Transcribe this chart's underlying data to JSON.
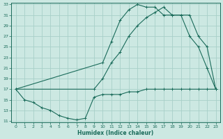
{
  "xlabel": "Humidex (Indice chaleur)",
  "bg_color": "#cce8e2",
  "grid_color": "#a8d0c8",
  "line_color": "#1a6b5a",
  "xlim": [
    0,
    23
  ],
  "ylim": [
    11,
    33
  ],
  "xticks": [
    0,
    1,
    2,
    3,
    4,
    5,
    6,
    7,
    8,
    9,
    10,
    11,
    12,
    13,
    14,
    15,
    16,
    17,
    18,
    19,
    20,
    21,
    22,
    23
  ],
  "yticks": [
    11,
    13,
    15,
    17,
    19,
    21,
    23,
    25,
    27,
    29,
    31,
    33
  ],
  "curve_bottom_x": [
    0,
    1,
    2,
    3,
    4,
    5,
    6,
    7,
    8,
    9,
    10,
    11,
    12,
    13,
    14,
    15,
    16,
    17,
    18,
    19,
    20,
    21,
    22,
    23
  ],
  "curve_bottom_y": [
    17,
    15,
    14.5,
    13.5,
    13,
    12,
    11.5,
    11.2,
    11.5,
    15.5,
    16,
    16,
    16,
    16.5,
    16.5,
    17,
    17,
    17,
    17,
    17,
    17,
    17,
    17,
    17
  ],
  "curve_mid_x": [
    0,
    9,
    10,
    11,
    12,
    13,
    14,
    15,
    16,
    17,
    18,
    19,
    20,
    21,
    22,
    23
  ],
  "curve_mid_y": [
    17,
    17,
    19,
    22,
    24,
    27,
    29,
    30.5,
    31.5,
    32.5,
    31,
    31,
    27,
    25,
    21,
    17
  ],
  "curve_top_x": [
    0,
    10,
    11,
    12,
    13,
    14,
    15,
    16,
    17,
    18,
    19,
    20,
    21,
    22,
    23
  ],
  "curve_top_y": [
    17,
    22,
    26,
    30,
    32,
    33,
    32.5,
    32.5,
    31,
    31,
    31,
    31,
    27,
    25,
    17
  ]
}
